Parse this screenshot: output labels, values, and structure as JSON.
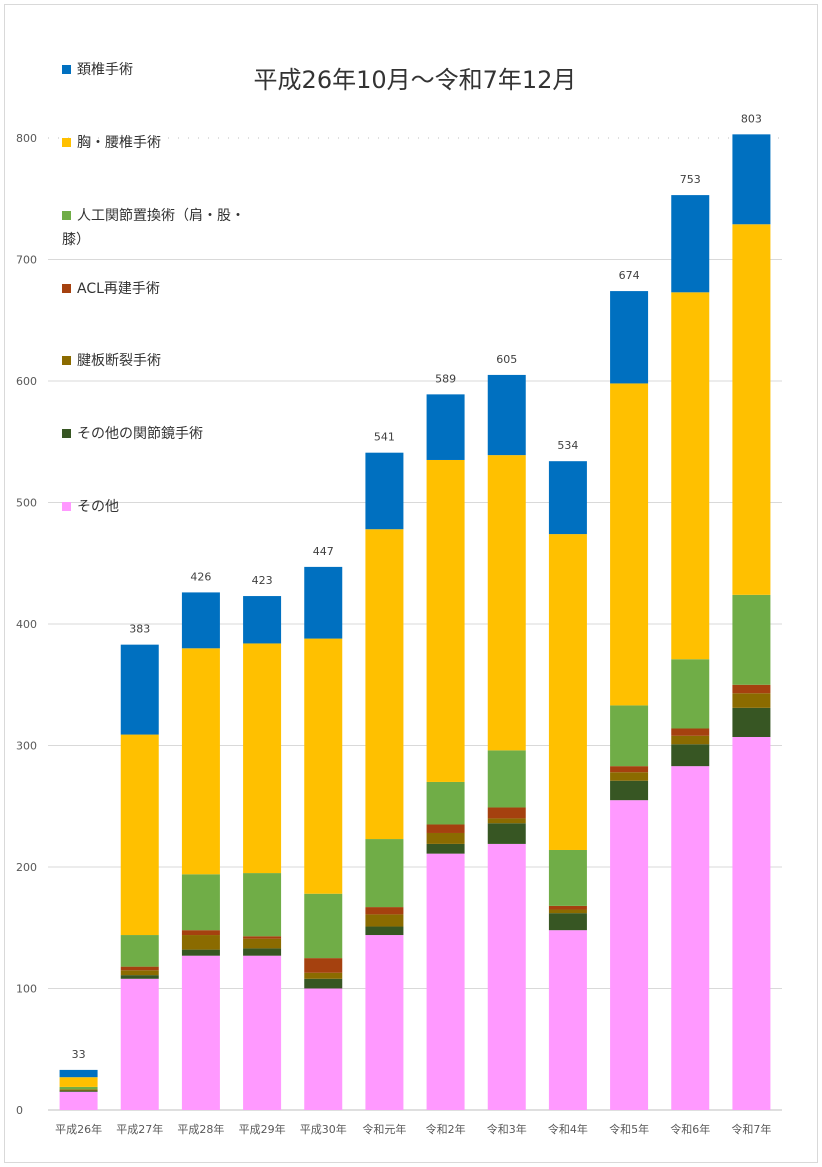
{
  "chart_data": {
    "type": "bar",
    "stacked": true,
    "title": "平成26年10月～令和7年12月",
    "xlabel": "",
    "ylabel": "",
    "ylim": [
      0,
      800
    ],
    "yticks": [
      0,
      100,
      200,
      300,
      400,
      500,
      600,
      700,
      800
    ],
    "grid": true,
    "legend_position": "left",
    "categories": [
      "平成26年",
      "平成27年",
      "平成28年",
      "平成29年",
      "平成30年",
      "令和元年",
      "令和2年",
      "令和3年",
      "令和4年",
      "令和5年",
      "令和6年",
      "令和7年"
    ],
    "totals": [
      33,
      383,
      426,
      423,
      447,
      541,
      589,
      605,
      534,
      674,
      753,
      803
    ],
    "series": [
      {
        "name": "その他",
        "color": "#ff99ff",
        "values": [
          15,
          108,
          127,
          127,
          100,
          144,
          211,
          219,
          148,
          255,
          283,
          307
        ]
      },
      {
        "name": "その他の関節鏡手術",
        "color": "#375623",
        "values": [
          1,
          3,
          5,
          6,
          8,
          7,
          8,
          17,
          14,
          16,
          18,
          24
        ]
      },
      {
        "name": "腱板断裂手術",
        "color": "#8b6b00",
        "values": [
          1,
          4,
          12,
          8,
          5,
          10,
          9,
          4,
          3,
          7,
          7,
          12
        ]
      },
      {
        "name": "ACL再建手術",
        "color": "#a5410f",
        "values": [
          0,
          3,
          4,
          2,
          12,
          6,
          7,
          9,
          3,
          5,
          6,
          7
        ]
      },
      {
        "name": "人工関節置換術（肩・股・膝）",
        "color": "#70ad47",
        "values": [
          2,
          26,
          46,
          52,
          53,
          56,
          35,
          47,
          46,
          50,
          57,
          74
        ]
      },
      {
        "name": "胸・腰椎手術",
        "color": "#ffc000",
        "values": [
          8,
          165,
          186,
          189,
          210,
          255,
          265,
          243,
          260,
          265,
          302,
          305
        ]
      },
      {
        "name": "頚椎手術",
        "color": "#0070c0",
        "values": [
          6,
          74,
          46,
          39,
          59,
          63,
          54,
          66,
          60,
          76,
          80,
          74
        ]
      }
    ]
  },
  "legend_order": [
    {
      "label": "頚椎手術",
      "color": "#0070c0"
    },
    {
      "label": "胸・腰椎手術",
      "color": "#ffc000"
    },
    {
      "label": "人工関節置換術（肩・股・",
      "label2": "膝）",
      "color": "#70ad47"
    },
    {
      "label": "ACL再建手術",
      "color": "#a5410f"
    },
    {
      "label": "腱板断裂手術",
      "color": "#8b6b00"
    },
    {
      "label": "その他の関節鏡手術",
      "color": "#375623"
    },
    {
      "label": "その他",
      "color": "#ff99ff"
    }
  ]
}
